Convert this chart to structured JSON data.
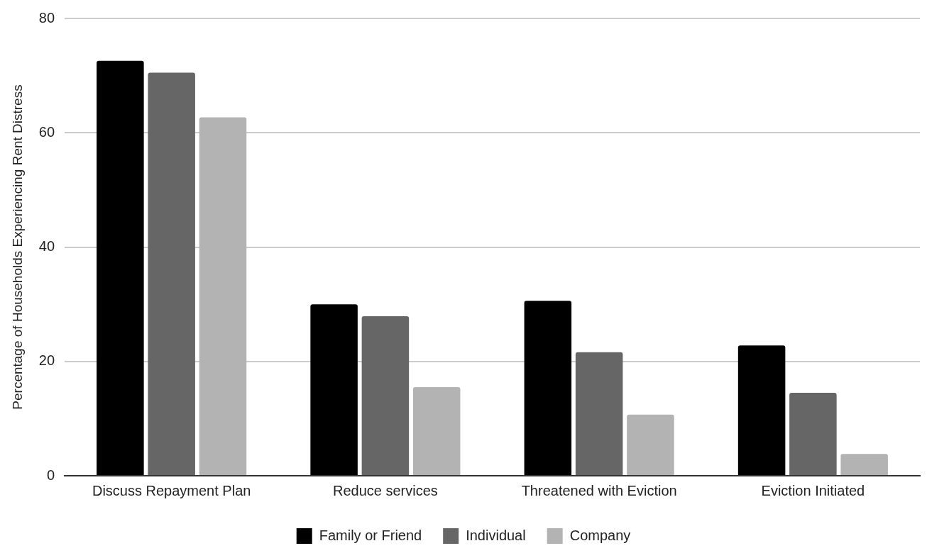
{
  "chart_data": {
    "type": "bar",
    "ylabel": "Percentage of Households Experiencing Rent Distress",
    "categories": [
      "Discuss Repayment Plan",
      "Reduce services",
      "Threatened with Eviction",
      "Eviction Initiated"
    ],
    "series": [
      {
        "name": "Family or Friend",
        "color": "#000000",
        "values": [
          72.6,
          30.0,
          30.6,
          22.8
        ]
      },
      {
        "name": "Individual",
        "color": "#666666",
        "values": [
          70.5,
          27.9,
          21.6,
          14.5
        ]
      },
      {
        "name": "Company",
        "color": "#b3b3b3",
        "values": [
          62.7,
          15.5,
          10.7,
          3.8
        ]
      }
    ],
    "ylim": [
      0,
      80
    ],
    "yticks": [
      0,
      20,
      40,
      60,
      80
    ],
    "grid": "y",
    "legend": "bottom"
  }
}
